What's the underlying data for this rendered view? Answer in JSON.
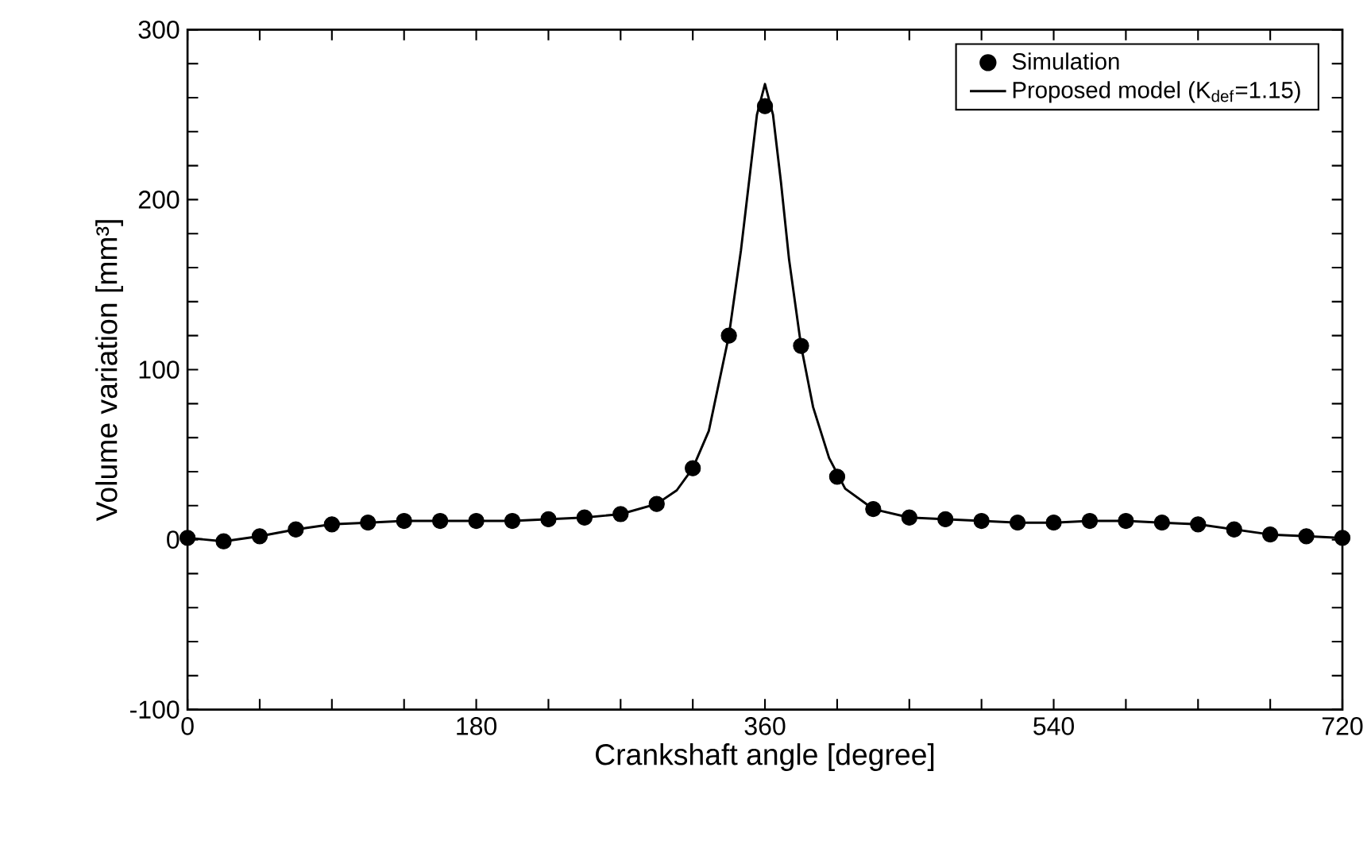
{
  "chart_data": {
    "type": "line",
    "xlabel": "Crankshaft angle [degree]",
    "ylabel": "Volume variation [mm³]",
    "xlim": [
      0,
      720
    ],
    "ylim": [
      -100,
      300
    ],
    "xticks": [
      0,
      {
        "value": 45,
        "label": null
      },
      {
        "value": 90,
        "label": null
      },
      {
        "value": 135,
        "label": null
      },
      180,
      {
        "value": 225,
        "label": null
      },
      {
        "value": 270,
        "label": null
      },
      {
        "value": 315,
        "label": null
      },
      360,
      {
        "value": 405,
        "label": null
      },
      {
        "value": 450,
        "label": null
      },
      {
        "value": 495,
        "label": null
      },
      540,
      {
        "value": 585,
        "label": null
      },
      {
        "value": 630,
        "label": null
      },
      {
        "value": 675,
        "label": null
      },
      720
    ],
    "yticks": [
      -100,
      {
        "value": -80,
        "label": null
      },
      {
        "value": -60,
        "label": null
      },
      {
        "value": -40,
        "label": null
      },
      {
        "value": -20,
        "label": null
      },
      0,
      {
        "value": 20,
        "label": null
      },
      {
        "value": 40,
        "label": null
      },
      {
        "value": 60,
        "label": null
      },
      {
        "value": 80,
        "label": null
      },
      100,
      {
        "value": 120,
        "label": null
      },
      {
        "value": 140,
        "label": null
      },
      {
        "value": 160,
        "label": null
      },
      {
        "value": 180,
        "label": null
      },
      200,
      {
        "value": 220,
        "label": null
      },
      {
        "value": 240,
        "label": null
      },
      {
        "value": 260,
        "label": null
      },
      {
        "value": 280,
        "label": null
      },
      300
    ],
    "legend": "top right",
    "grid": false,
    "series": [
      {
        "name": "Simulation",
        "type": "scatter",
        "marker": "circle",
        "color": "#000000",
        "x": [
          0,
          22.5,
          45,
          67.5,
          90,
          112.5,
          135,
          157.5,
          180,
          202.5,
          225,
          247.5,
          270,
          292.5,
          315,
          337.5,
          360,
          382.5,
          405,
          427.5,
          450,
          472.5,
          495,
          517.5,
          540,
          562.5,
          585,
          607.5,
          630,
          652.5,
          675,
          697.5,
          720
        ],
        "values": [
          1,
          -1,
          2,
          6,
          9,
          10,
          11,
          11,
          11,
          11,
          12,
          13,
          15,
          21,
          42,
          120,
          255,
          114,
          37,
          18,
          13,
          12,
          11,
          10,
          10,
          11,
          11,
          10,
          9,
          6,
          3,
          2,
          1
        ]
      },
      {
        "name": "Proposed model (K$_{def}$=1.15)",
        "marker": "none",
        "color": "#000000",
        "x": [
          0,
          22.5,
          45,
          67.5,
          90,
          112.5,
          135,
          157.5,
          180,
          202.5,
          225,
          247.5,
          270,
          292.5,
          305,
          315,
          325,
          337.5,
          345,
          350,
          355,
          360,
          365,
          370,
          375,
          382.5,
          390,
          400,
          410,
          427.5,
          450,
          472.5,
          495,
          517.5,
          540,
          562.5,
          585,
          607.5,
          630,
          652.5,
          675,
          697.5,
          720
        ],
        "values": [
          1,
          -1,
          2,
          6,
          9,
          10,
          11,
          11,
          11,
          11,
          12,
          13,
          15,
          21,
          29,
          42,
          64,
          120,
          170,
          210,
          250,
          268,
          250,
          210,
          165,
          114,
          78,
          48,
          30,
          18,
          13,
          12,
          11,
          10,
          10,
          11,
          11,
          10,
          9,
          6,
          3,
          2,
          1
        ]
      }
    ]
  }
}
